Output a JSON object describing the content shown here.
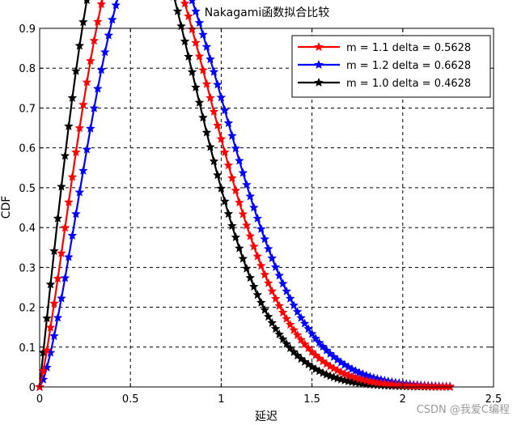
{
  "chart_data": {
    "type": "line",
    "title": "Nakagami函数拟合比较",
    "xlabel": "延迟",
    "ylabel": "CDF",
    "xlim": [
      0,
      2.5
    ],
    "ylim": [
      0,
      0.9
    ],
    "xticks": [
      "0",
      "0.5",
      "1",
      "1.5",
      "2",
      "2.5"
    ],
    "yticks": [
      "0",
      "0.1",
      "0.2",
      "0.3",
      "0.4",
      "0.5",
      "0.6",
      "0.7",
      "0.8",
      "0.9"
    ],
    "grid": true,
    "legend_position": "top-right",
    "x_range": [
      0,
      2.25
    ],
    "x_step": 0.02,
    "series": [
      {
        "name": "m = 1.1 delta = 0.5628",
        "color": "#ff0000",
        "m": 1.1,
        "omega": 0.5628,
        "marker": "star"
      },
      {
        "name": "m = 1.2 delta = 0.6628",
        "color": "#0000ff",
        "m": 1.2,
        "omega": 0.6628,
        "marker": "star"
      },
      {
        "name": "m = 1.0 delta = 0.4628",
        "color": "#000000",
        "m": 1.0,
        "omega": 0.4628,
        "marker": "star"
      }
    ]
  },
  "watermark": "CSDN @我爱C编程"
}
